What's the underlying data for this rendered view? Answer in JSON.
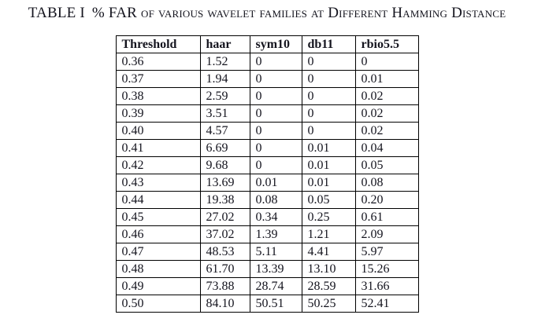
{
  "title": {
    "label": "TABLE I",
    "caption": "% FAR of various wavelet families at Different Hamming Distance"
  },
  "table": {
    "headers": [
      "Threshold",
      "haar",
      "sym10",
      "db11",
      "rbio5.5"
    ],
    "rows": [
      [
        "0.36",
        "1.52",
        "0",
        "0",
        "0"
      ],
      [
        "0.37",
        "1.94",
        "0",
        "0",
        "0.01"
      ],
      [
        "0.38",
        "2.59",
        "0",
        "0",
        "0.02"
      ],
      [
        "0.39",
        "3.51",
        "0",
        "0",
        "0.02"
      ],
      [
        "0.40",
        "4.57",
        "0",
        "0",
        "0.02"
      ],
      [
        "0.41",
        "6.69",
        "0",
        "0.01",
        "0.04"
      ],
      [
        "0.42",
        "9.68",
        "0",
        "0.01",
        "0.05"
      ],
      [
        "0.43",
        "13.69",
        "0.01",
        "0.01",
        "0.08"
      ],
      [
        "0.44",
        "19.38",
        "0.08",
        "0.05",
        "0.20"
      ],
      [
        "0.45",
        "27.02",
        "0.34",
        "0.25",
        "0.61"
      ],
      [
        "0.46",
        "37.02",
        "1.39",
        "1.21",
        "2.09"
      ],
      [
        "0.47",
        "48.53",
        "5.11",
        "4.41",
        "5.97"
      ],
      [
        "0.48",
        "61.70",
        "13.39",
        "13.10",
        "15.26"
      ],
      [
        "0.49",
        "73.88",
        "28.74",
        "28.59",
        "31.66"
      ],
      [
        "0.50",
        "84.10",
        "50.51",
        "50.25",
        "52.41"
      ]
    ]
  },
  "colors": {
    "text": "#14141e",
    "border": "#000000",
    "background": "#ffffff"
  }
}
